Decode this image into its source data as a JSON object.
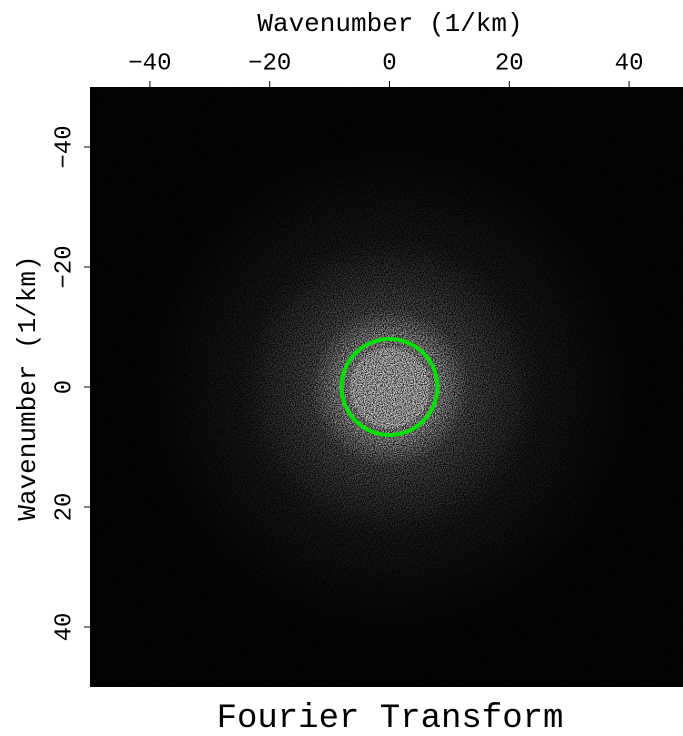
{
  "chart_data": {
    "type": "heatmap",
    "title": "Fourier Transform",
    "xlabel": "Wavenumber (1/km)",
    "ylabel": "Wavenumber (1/km)",
    "xlim": [
      -50,
      49
    ],
    "ylim": [
      -50,
      50
    ],
    "xticks": [
      {
        "value": -40,
        "label": "−40"
      },
      {
        "value": -20,
        "label": "−20"
      },
      0,
      20,
      40
    ],
    "yticks": [
      {
        "value": -40,
        "label": "−40"
      },
      {
        "value": -20,
        "label": "−20"
      },
      0,
      20,
      40
    ],
    "rings": [
      {
        "x": 0,
        "y": 0,
        "r": 8,
        "color": "#00e000"
      }
    ]
  }
}
